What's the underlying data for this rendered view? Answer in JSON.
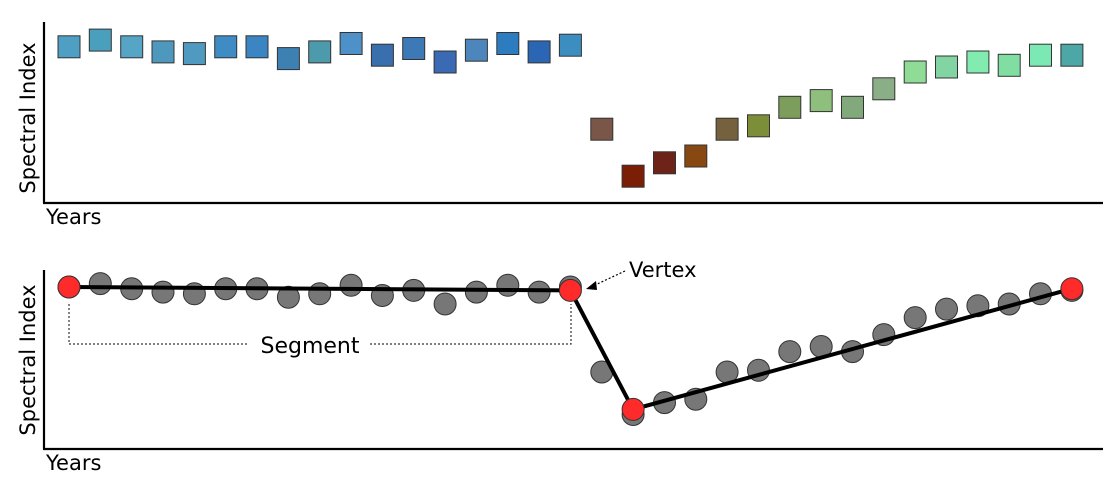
{
  "top_panel": {
    "ylabel": "Spectral Index",
    "xlabel": "Years"
  },
  "bottom_panel": {
    "ylabel": "Spectral Index",
    "xlabel": "Years",
    "vertex_label": "Vertex",
    "segment_label": "Segment"
  },
  "chart_data": [
    {
      "type": "scatter",
      "marker": "square",
      "xlabel": "Years",
      "ylabel": "Spectral Index",
      "x": [
        1,
        2,
        3,
        4,
        5,
        6,
        7,
        8,
        9,
        10,
        11,
        12,
        13,
        14,
        15,
        16,
        17,
        18,
        19,
        20,
        21,
        22,
        23,
        24,
        25,
        26,
        27,
        28,
        29,
        30,
        31,
        32,
        33
      ],
      "y": [
        0.87,
        0.91,
        0.87,
        0.84,
        0.83,
        0.87,
        0.87,
        0.8,
        0.84,
        0.89,
        0.82,
        0.86,
        0.78,
        0.85,
        0.89,
        0.84,
        0.88,
        0.38,
        0.1,
        0.18,
        0.22,
        0.38,
        0.4,
        0.51,
        0.55,
        0.51,
        0.62,
        0.72,
        0.75,
        0.78,
        0.76,
        0.82,
        0.82
      ],
      "colors": [
        "#4f9ec4",
        "#4a9fbd",
        "#56a4c6",
        "#4f98bd",
        "#509ac1",
        "#3f8cc4",
        "#3b86c2",
        "#3d80b2",
        "#4c9aac",
        "#4e90c8",
        "#3a6fad",
        "#3d79b6",
        "#3a6ab3",
        "#4c86bc",
        "#2d7cbf",
        "#2b66b4",
        "#3d8ec0",
        "#7a5648",
        "#7a1e06",
        "#6e2318",
        "#884812",
        "#76613e",
        "#7d8e39",
        "#7c9d5c",
        "#8fbf7c",
        "#82a97c",
        "#8aae85",
        "#8edc96",
        "#82d5a2",
        "#82ebb0",
        "#80dea3",
        "#7ce8b3",
        "#4ea7a7"
      ],
      "ylim": [
        0,
        1
      ],
      "grid": false
    },
    {
      "type": "line",
      "xlabel": "Years",
      "ylabel": "Spectral Index",
      "points": {
        "x": [
          1,
          2,
          3,
          4,
          5,
          6,
          7,
          8,
          9,
          10,
          11,
          12,
          13,
          14,
          15,
          16,
          17,
          18,
          19,
          20,
          21,
          22,
          23,
          24,
          25,
          26,
          27,
          28,
          29,
          30,
          31,
          32,
          33
        ],
        "y": [
          0.9,
          0.92,
          0.89,
          0.87,
          0.86,
          0.89,
          0.89,
          0.84,
          0.86,
          0.91,
          0.85,
          0.88,
          0.8,
          0.87,
          0.91,
          0.87,
          0.9,
          0.4,
          0.15,
          0.22,
          0.24,
          0.4,
          0.41,
          0.52,
          0.55,
          0.52,
          0.62,
          0.72,
          0.77,
          0.79,
          0.8,
          0.86,
          0.88
        ],
        "color": "#777777"
      },
      "fitted_segments": {
        "x": [
          1,
          17,
          19,
          33
        ],
        "y": [
          0.9,
          0.88,
          0.18,
          0.89
        ],
        "line_color": "#000000",
        "vertex_color": "#ff2a2a"
      },
      "ylim": [
        0,
        1
      ],
      "grid": false
    }
  ]
}
